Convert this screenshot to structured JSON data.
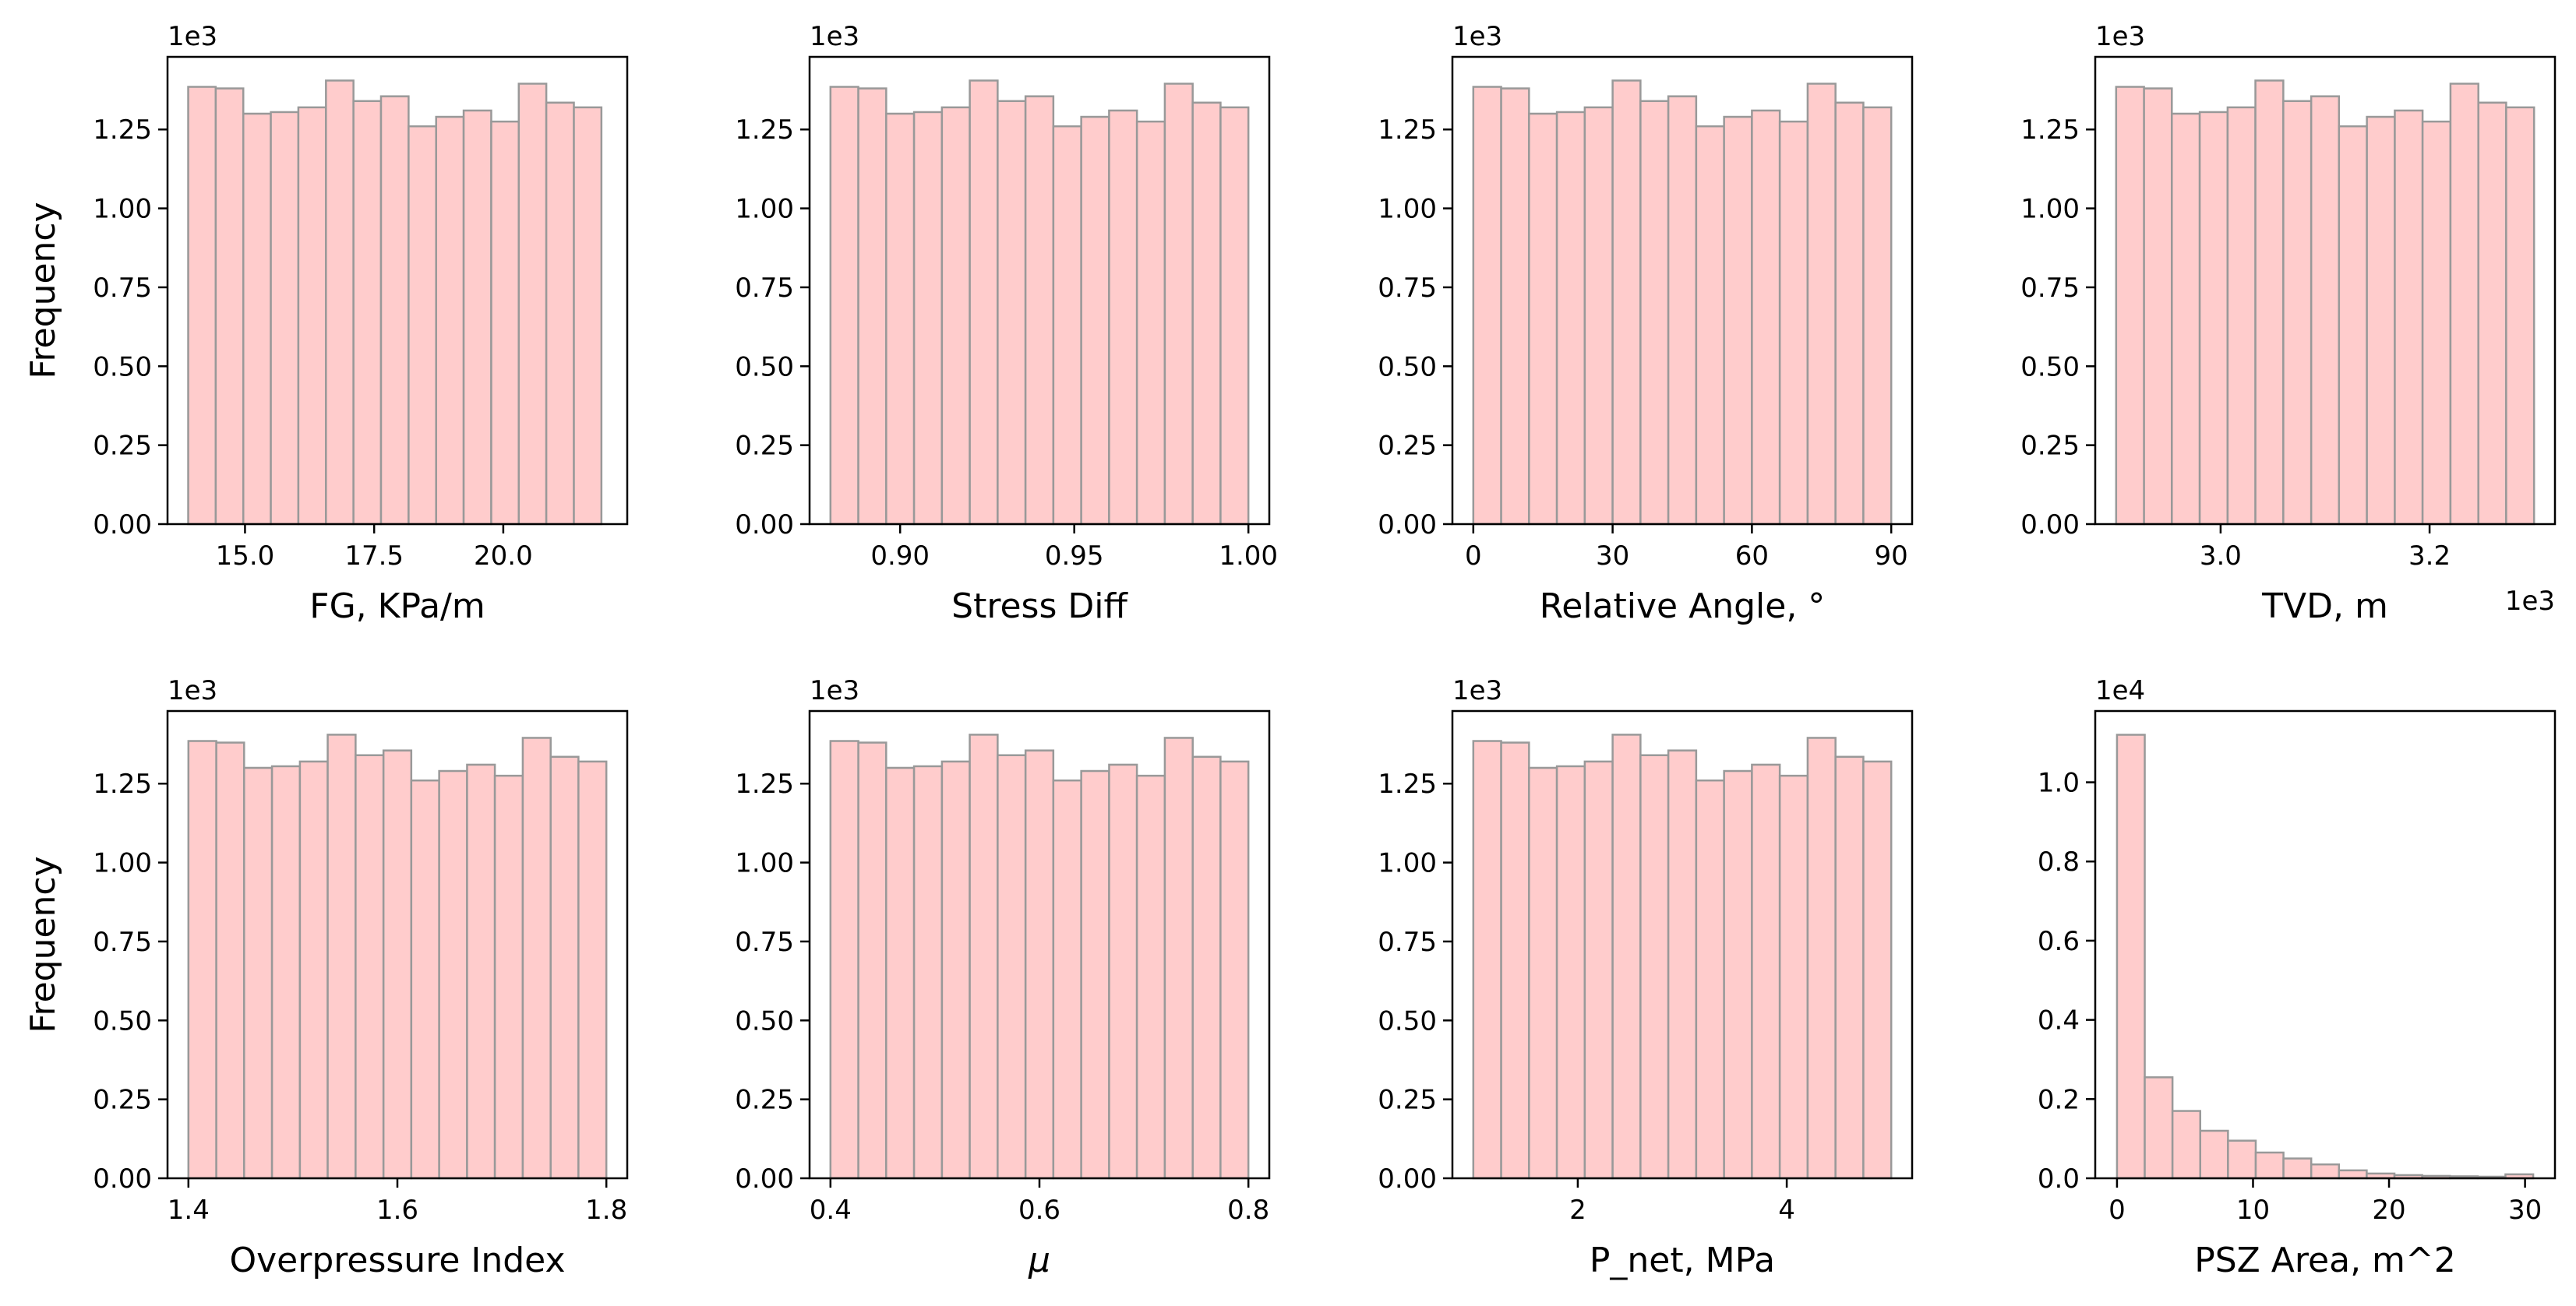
{
  "figure": {
    "bar_color": "#ffcccc",
    "bar_edge_color": "#999999"
  },
  "chart_data": [
    {
      "type": "bar",
      "xlabel": "FG, KPa/m",
      "ylabel": "Frequency",
      "y_offset_label": "1e3",
      "x_offset_label": "",
      "xlim": [
        13.5,
        22.4
      ],
      "ylim": [
        0,
        1.48
      ],
      "xticks": [
        15.0,
        17.5,
        20.0
      ],
      "xtick_labels": [
        "15.0",
        "17.5",
        "20.0"
      ],
      "yticks": [
        0,
        0.25,
        0.5,
        0.75,
        1.0,
        1.25
      ],
      "ytick_labels": [
        "0.00",
        "0.25",
        "0.50",
        "0.75",
        "1.00",
        "1.25"
      ],
      "bin_edges": [
        13.9,
        14.433,
        14.967,
        15.5,
        16.033,
        16.567,
        17.1,
        17.633,
        18.167,
        18.7,
        19.233,
        19.767,
        20.3,
        20.833,
        21.367,
        21.9
      ],
      "values": [
        1.385,
        1.38,
        1.3,
        1.305,
        1.32,
        1.405,
        1.34,
        1.355,
        1.26,
        1.29,
        1.31,
        1.275,
        1.395,
        1.335,
        1.32
      ]
    },
    {
      "type": "bar",
      "xlabel": "Stress Diff",
      "ylabel": "",
      "y_offset_label": "1e3",
      "x_offset_label": "",
      "xlim": [
        0.874,
        1.006
      ],
      "ylim": [
        0,
        1.48
      ],
      "xticks": [
        0.9,
        0.95,
        1.0
      ],
      "xtick_labels": [
        "0.90",
        "0.95",
        "1.00"
      ],
      "yticks": [
        0,
        0.25,
        0.5,
        0.75,
        1.0,
        1.25
      ],
      "ytick_labels": [
        "0.00",
        "0.25",
        "0.50",
        "0.75",
        "1.00",
        "1.25"
      ],
      "bin_edges": [
        0.88,
        0.888,
        0.896,
        0.904,
        0.912,
        0.92,
        0.928,
        0.936,
        0.944,
        0.952,
        0.96,
        0.968,
        0.976,
        0.984,
        0.992,
        1.0
      ],
      "values": [
        1.385,
        1.38,
        1.3,
        1.305,
        1.32,
        1.405,
        1.34,
        1.355,
        1.26,
        1.29,
        1.31,
        1.275,
        1.395,
        1.335,
        1.32
      ]
    },
    {
      "type": "bar",
      "xlabel": "Relative Angle, °",
      "ylabel": "",
      "y_offset_label": "1e3",
      "x_offset_label": "",
      "xlim": [
        -4.5,
        94.5
      ],
      "ylim": [
        0,
        1.48
      ],
      "xticks": [
        0,
        30,
        60,
        90
      ],
      "xtick_labels": [
        "0",
        "30",
        "60",
        "90"
      ],
      "yticks": [
        0,
        0.25,
        0.5,
        0.75,
        1.0,
        1.25
      ],
      "ytick_labels": [
        "0.00",
        "0.25",
        "0.50",
        "0.75",
        "1.00",
        "1.25"
      ],
      "bin_edges": [
        0,
        6,
        12,
        18,
        24,
        30,
        36,
        42,
        48,
        54,
        60,
        66,
        72,
        78,
        84,
        90
      ],
      "values": [
        1.385,
        1.38,
        1.3,
        1.305,
        1.32,
        1.405,
        1.34,
        1.355,
        1.26,
        1.29,
        1.31,
        1.275,
        1.395,
        1.335,
        1.32
      ]
    },
    {
      "type": "bar",
      "xlabel": "TVD, m",
      "ylabel": "",
      "y_offset_label": "1e3",
      "x_offset_label": "1e3",
      "xlim": [
        2.88,
        3.32
      ],
      "ylim": [
        0,
        1.48
      ],
      "xticks": [
        3.0,
        3.2
      ],
      "xtick_labels": [
        "3.0",
        "3.2"
      ],
      "yticks": [
        0,
        0.25,
        0.5,
        0.75,
        1.0,
        1.25
      ],
      "ytick_labels": [
        "0.00",
        "0.25",
        "0.50",
        "0.75",
        "1.00",
        "1.25"
      ],
      "bin_edges": [
        2.9,
        2.9267,
        2.9533,
        2.98,
        3.0067,
        3.0333,
        3.06,
        3.0867,
        3.1133,
        3.14,
        3.1667,
        3.1933,
        3.22,
        3.2467,
        3.2733,
        3.3
      ],
      "values": [
        1.385,
        1.38,
        1.3,
        1.305,
        1.32,
        1.405,
        1.34,
        1.355,
        1.26,
        1.29,
        1.31,
        1.275,
        1.395,
        1.335,
        1.32
      ]
    },
    {
      "type": "bar",
      "xlabel": "Overpressure Index",
      "ylabel": "Frequency",
      "y_offset_label": "1e3",
      "x_offset_label": "",
      "xlim": [
        1.38,
        1.82
      ],
      "ylim": [
        0,
        1.48
      ],
      "xticks": [
        1.4,
        1.6,
        1.8
      ],
      "xtick_labels": [
        "1.4",
        "1.6",
        "1.8"
      ],
      "yticks": [
        0,
        0.25,
        0.5,
        0.75,
        1.0,
        1.25
      ],
      "ytick_labels": [
        "0.00",
        "0.25",
        "0.50",
        "0.75",
        "1.00",
        "1.25"
      ],
      "bin_edges": [
        1.4,
        1.4267,
        1.4533,
        1.48,
        1.5067,
        1.5333,
        1.56,
        1.5867,
        1.6133,
        1.64,
        1.6667,
        1.6933,
        1.72,
        1.7467,
        1.7733,
        1.8
      ],
      "values": [
        1.385,
        1.38,
        1.3,
        1.305,
        1.32,
        1.405,
        1.34,
        1.355,
        1.26,
        1.29,
        1.31,
        1.275,
        1.395,
        1.335,
        1.32
      ]
    },
    {
      "type": "bar",
      "xlabel": "μ",
      "ylabel": "",
      "y_offset_label": "1e3",
      "x_offset_label": "",
      "xlim": [
        0.38,
        0.82
      ],
      "ylim": [
        0,
        1.48
      ],
      "xticks": [
        0.4,
        0.6,
        0.8
      ],
      "xtick_labels": [
        "0.4",
        "0.6",
        "0.8"
      ],
      "yticks": [
        0,
        0.25,
        0.5,
        0.75,
        1.0,
        1.25
      ],
      "ytick_labels": [
        "0.00",
        "0.25",
        "0.50",
        "0.75",
        "1.00",
        "1.25"
      ],
      "bin_edges": [
        0.4,
        0.4267,
        0.4533,
        0.48,
        0.5067,
        0.5333,
        0.56,
        0.5867,
        0.6133,
        0.64,
        0.6667,
        0.6933,
        0.72,
        0.7467,
        0.7733,
        0.8
      ],
      "values": [
        1.385,
        1.38,
        1.3,
        1.305,
        1.32,
        1.405,
        1.34,
        1.355,
        1.26,
        1.29,
        1.31,
        1.275,
        1.395,
        1.335,
        1.32
      ]
    },
    {
      "type": "bar",
      "xlabel": "P_net, MPa",
      "ylabel": "",
      "y_offset_label": "1e3",
      "x_offset_label": "",
      "xlim": [
        0.8,
        5.2
      ],
      "ylim": [
        0,
        1.48
      ],
      "xticks": [
        2,
        4
      ],
      "xtick_labels": [
        "2",
        "4"
      ],
      "yticks": [
        0,
        0.25,
        0.5,
        0.75,
        1.0,
        1.25
      ],
      "ytick_labels": [
        "0.00",
        "0.25",
        "0.50",
        "0.75",
        "1.00",
        "1.25"
      ],
      "bin_edges": [
        1.0,
        1.2667,
        1.5333,
        1.8,
        2.0667,
        2.3333,
        2.6,
        2.8667,
        3.1333,
        3.4,
        3.6667,
        3.9333,
        4.2,
        4.4667,
        4.7333,
        5.0
      ],
      "values": [
        1.385,
        1.38,
        1.3,
        1.305,
        1.32,
        1.405,
        1.34,
        1.355,
        1.26,
        1.29,
        1.31,
        1.275,
        1.395,
        1.335,
        1.32
      ]
    },
    {
      "type": "bar",
      "xlabel": "PSZ Area, m^2",
      "ylabel": "",
      "y_offset_label": "1e4",
      "x_offset_label": "",
      "xlim": [
        -1.6,
        32.2
      ],
      "ylim": [
        0,
        1.18
      ],
      "xticks": [
        0,
        10,
        20,
        30
      ],
      "xtick_labels": [
        "0",
        "10",
        "20",
        "30"
      ],
      "yticks": [
        0,
        0.2,
        0.4,
        0.6,
        0.8,
        1.0
      ],
      "ytick_labels": [
        "0.0",
        "0.2",
        "0.4",
        "0.6",
        "0.8",
        "1.0"
      ],
      "bin_edges": [
        0,
        2.04,
        4.08,
        6.12,
        8.16,
        10.2,
        12.24,
        14.28,
        16.32,
        18.36,
        20.4,
        22.44,
        24.48,
        26.52,
        28.56,
        30.6
      ],
      "values": [
        1.12,
        0.255,
        0.17,
        0.12,
        0.095,
        0.065,
        0.05,
        0.035,
        0.02,
        0.012,
        0.008,
        0.006,
        0.005,
        0.004,
        0.01
      ]
    }
  ]
}
